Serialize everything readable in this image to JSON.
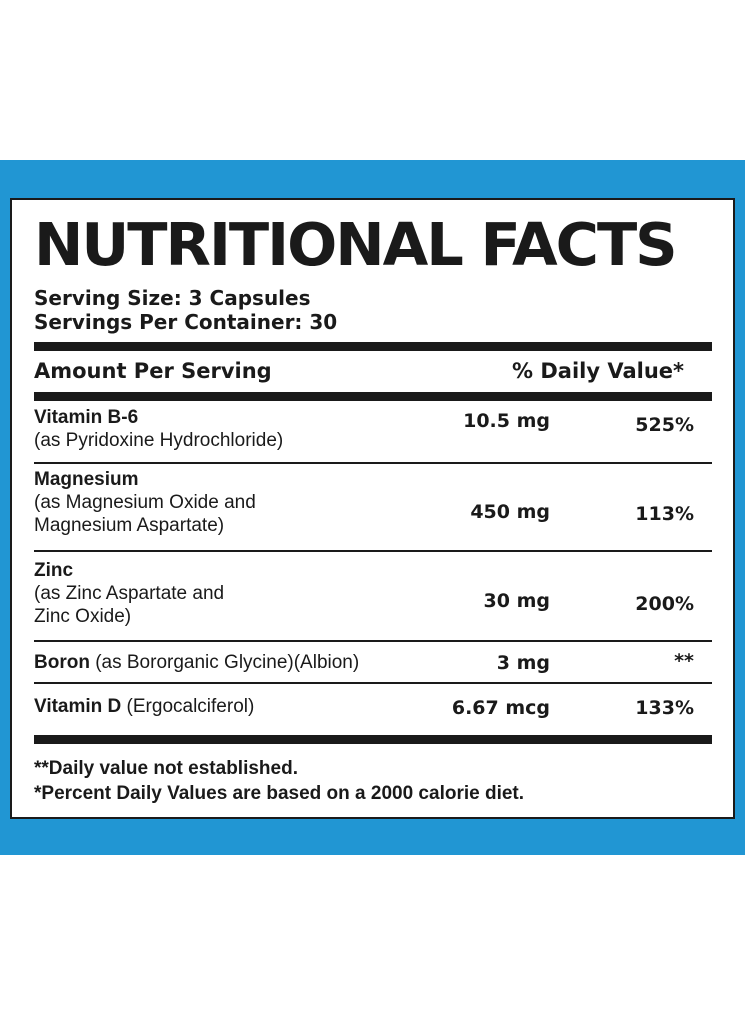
{
  "title": "NUTRITIONAL FACTS",
  "serving_size": "Serving Size: 3 Capsules",
  "servings_per_container": "Servings Per Container: 30",
  "header": {
    "amount_per_serving": "Amount Per Serving",
    "daily_value": "% Daily Value*"
  },
  "nutrients": [
    {
      "name": "Vitamin B-6",
      "detail_1": "(as Pyridoxine Hydrochloride)",
      "amount": "10.5 mg",
      "dv": "525%"
    },
    {
      "name": "Magnesium",
      "detail_1": "(as Magnesium Oxide and",
      "detail_2": "Magnesium Aspartate)",
      "amount": "450 mg",
      "dv": "113%"
    },
    {
      "name": "Zinc",
      "detail_1": "(as Zinc Aspartate and",
      "detail_2": "Zinc Oxide)",
      "amount": "30 mg",
      "dv": "200%"
    },
    {
      "name": "Boron",
      "detail_inline": " (as Bororganic Glycine)(Albion)",
      "amount": "3 mg",
      "dv": "**"
    },
    {
      "name": "Vitamin D",
      "detail_inline": " (Ergocalciferol)",
      "amount": "6.67 mcg",
      "dv": "133%"
    }
  ],
  "footnotes": {
    "not_established": "**Daily value not established.",
    "percent_basis": "*Percent Daily Values are based on a 2000 calorie diet."
  },
  "colors": {
    "band": "#2196d3",
    "text": "#1a1a1a",
    "panel": "#ffffff"
  }
}
